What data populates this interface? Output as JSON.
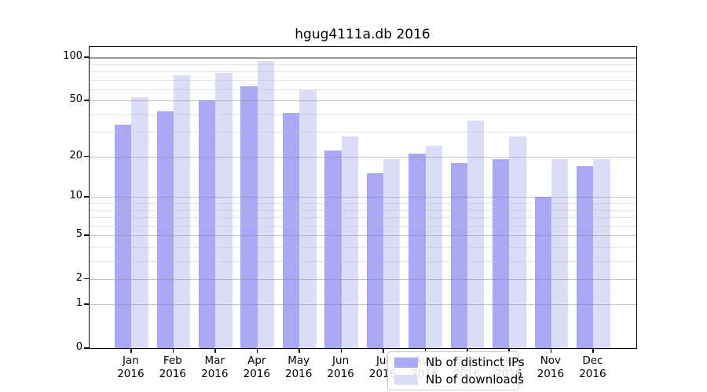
{
  "title": "hgug4111a.db 2016",
  "chart_data": {
    "type": "bar",
    "title": "hgug4111a.db 2016",
    "categories": [
      "Jan",
      "Feb",
      "Mar",
      "Apr",
      "May",
      "Jun",
      "Jul",
      "Aug",
      "Sep",
      "Oct",
      "Nov",
      "Dec"
    ],
    "category_year": "2016",
    "series": [
      {
        "name": "Nb of distinct IPs",
        "color": "#a8a8f4",
        "values": [
          34,
          42,
          50,
          63,
          41,
          22,
          15,
          21,
          18,
          19,
          10,
          17
        ]
      },
      {
        "name": "Nb of downloads",
        "color": "#dcdcf9",
        "values": [
          53,
          75,
          78,
          94,
          59,
          28,
          19,
          24,
          36,
          28,
          19,
          19
        ]
      }
    ],
    "yscale": "log1p",
    "y_major_ticks": [
      0,
      1,
      2,
      5,
      10,
      20,
      50,
      100
    ],
    "y_minor_ticks": [
      3,
      4,
      6,
      7,
      8,
      9,
      30,
      40,
      60,
      70,
      80,
      90
    ],
    "ylim_top": 118,
    "grid": "on",
    "legend_position": "inside-bottom-center",
    "colors": {
      "axis": "#000000",
      "grid_major": "#bfbfbf",
      "grid_minor": "#e8e8e8",
      "background": "#ffffff"
    }
  }
}
